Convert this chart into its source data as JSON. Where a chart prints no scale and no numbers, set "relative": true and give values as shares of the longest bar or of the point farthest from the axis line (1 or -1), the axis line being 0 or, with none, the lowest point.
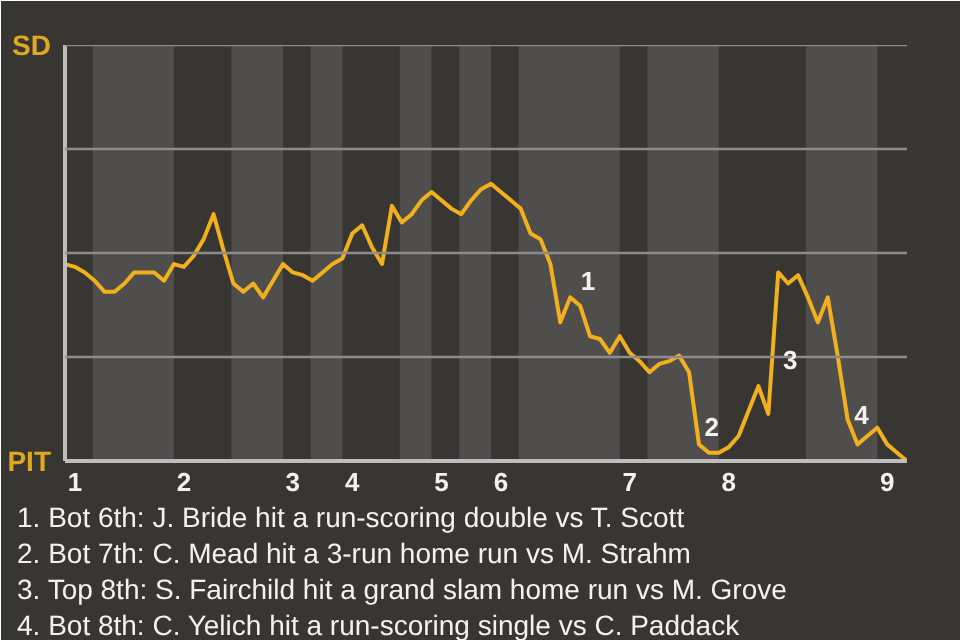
{
  "chart_data": {
    "type": "line",
    "relative": true,
    "categories": [
      null,
      "1",
      null,
      null,
      null,
      null,
      null,
      null,
      null,
      null,
      null,
      null,
      "2",
      null,
      null,
      null,
      null,
      null,
      null,
      null,
      null,
      null,
      null,
      "3",
      null,
      null,
      null,
      null,
      null,
      "4",
      null,
      null,
      null,
      null,
      null,
      null,
      null,
      null,
      "5",
      null,
      null,
      null,
      null,
      null,
      "6",
      null,
      null,
      null,
      null,
      null,
      null,
      null,
      null,
      null,
      null,
      null,
      null,
      "7",
      null,
      null,
      null,
      null,
      null,
      null,
      null,
      null,
      null,
      "8",
      null,
      null,
      null,
      null,
      null,
      null,
      null,
      null,
      null,
      null,
      null,
      null,
      null,
      null,
      null,
      "9",
      null,
      null
    ],
    "series": [
      {
        "color": "#f2b01e",
        "values": [
          0.71,
          0.7,
          0.68,
          0.65,
          0.61,
          0.61,
          0.64,
          0.68,
          0.68,
          0.68,
          0.65,
          0.71,
          0.7,
          0.74,
          0.8,
          0.89,
          0.76,
          0.64,
          0.61,
          0.64,
          0.59,
          0.65,
          0.71,
          0.68,
          0.67,
          0.65,
          0.68,
          0.71,
          0.73,
          0.82,
          0.85,
          0.77,
          0.71,
          0.92,
          0.86,
          0.89,
          0.94,
          0.97,
          0.94,
          0.91,
          0.89,
          0.94,
          0.98,
          1,
          0.97,
          0.94,
          0.91,
          0.82,
          0.8,
          0.71,
          0.5,
          0.59,
          0.56,
          0.45,
          0.44,
          0.39,
          0.45,
          0.39,
          0.36,
          0.32,
          0.35,
          0.36,
          0.38,
          0.32,
          0.06,
          0.03,
          0.03,
          0.05,
          0.09,
          0.18,
          0.27,
          0.17,
          0.68,
          0.64,
          0.67,
          0.59,
          0.5,
          0.59,
          0.38,
          0.15,
          0.06,
          0.09,
          0.12,
          0.06,
          0.03,
          0
        ]
      }
    ],
    "ref_lines": [
      {
        "axis": "y",
        "value": 0.375,
        "color": "#8c8c8c"
      },
      {
        "axis": "y",
        "value": 0.75,
        "color": "#8c8c8c"
      },
      {
        "axis": "y",
        "value": 1.125,
        "color": "#8c8c8c"
      },
      {
        "axis": "y",
        "value": 1.5,
        "color": "#8c8c8c"
      }
    ],
    "annotations": [
      "SD",
      "PIT",
      "1",
      "2",
      "3",
      "4",
      "1. Bot 6th: J. Bride hit a run-scoring double vs T. Scott",
      "2. Bot 7th: C. Mead hit a 3-run home run vs M. Strahm",
      "3. Top 8th: S. Fairchild hit a grand slam home run vs M. Grove",
      "4. Bot 8th: C. Yelich hit a run-scoring single vs C. Paddack"
    ]
  }
}
